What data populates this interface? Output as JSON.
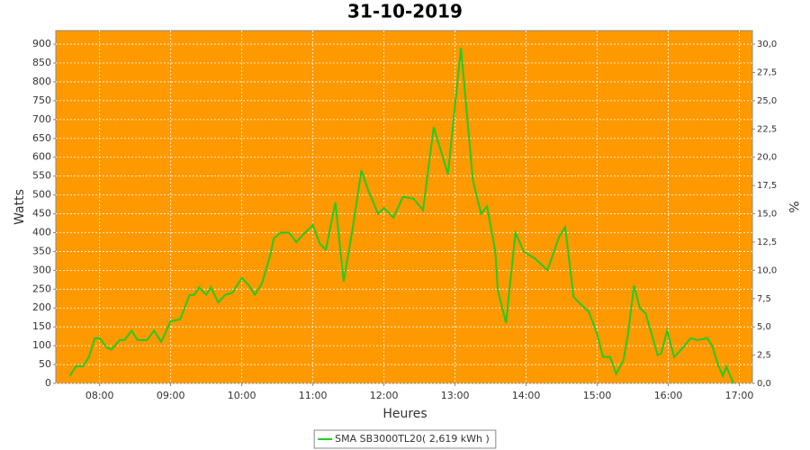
{
  "chart_data": {
    "type": "line",
    "title": "31-10-2019",
    "xlabel": "Heures",
    "ylabel": "Watts",
    "y2label": "%",
    "x": [
      "07:35",
      "07:40",
      "07:46",
      "07:51",
      "07:56",
      "08:00",
      "08:06",
      "08:10",
      "08:17",
      "08:21",
      "08:27",
      "08:32",
      "08:40",
      "08:46",
      "08:52",
      "09:00",
      "09:08",
      "09:16",
      "09:20",
      "09:24",
      "09:30",
      "09:34",
      "09:40",
      "09:46",
      "09:52",
      "10:00",
      "10:06",
      "10:11",
      "10:17",
      "10:24",
      "10:27",
      "10:33",
      "10:40",
      "10:46",
      "10:52",
      "11:00",
      "11:06",
      "11:11",
      "11:19",
      "11:26",
      "11:33",
      "11:41",
      "11:47",
      "11:55",
      "12:00",
      "12:08",
      "12:16",
      "12:25",
      "12:33",
      "12:42",
      "12:54",
      "13:05",
      "13:15",
      "13:22",
      "13:27",
      "13:34",
      "13:36",
      "13:43",
      "13:51",
      "13:58",
      "14:08",
      "14:18",
      "14:28",
      "14:33",
      "14:40",
      "14:46",
      "14:53",
      "15:00",
      "15:05",
      "15:11",
      "15:16",
      "15:22",
      "15:26",
      "15:31",
      "15:36",
      "15:41",
      "15:46",
      "15:51",
      "15:54",
      "15:59",
      "16:05",
      "16:11",
      "16:19",
      "16:25",
      "16:33",
      "16:37",
      "16:42",
      "16:46",
      "16:49",
      "16:55"
    ],
    "series": [
      {
        "name": "SMA SB3000TL20( 2,619 kWh )",
        "color": "#22cc22",
        "values": [
          20,
          45,
          45,
          70,
          120,
          120,
          95,
          90,
          115,
          115,
          140,
          115,
          115,
          140,
          110,
          165,
          170,
          235,
          235,
          255,
          235,
          255,
          215,
          235,
          240,
          280,
          260,
          235,
          265,
          340,
          385,
          400,
          400,
          375,
          395,
          420,
          370,
          355,
          480,
          270,
          400,
          565,
          510,
          450,
          465,
          440,
          495,
          490,
          460,
          680,
          555,
          890,
          540,
          450,
          470,
          350,
          250,
          160,
          400,
          350,
          330,
          300,
          390,
          415,
          230,
          210,
          190,
          130,
          70,
          70,
          25,
          60,
          130,
          260,
          200,
          185,
          130,
          75,
          80,
          140,
          70,
          90,
          120,
          115,
          120,
          100,
          50,
          20,
          45,
          0
        ]
      }
    ],
    "xlim": [
      "07:23",
      "17:11"
    ],
    "xticks": [
      "08:00",
      "09:00",
      "10:00",
      "11:00",
      "12:00",
      "13:00",
      "14:00",
      "15:00",
      "16:00",
      "17:00"
    ],
    "ylim": [
      0,
      936
    ],
    "yticks": [
      0,
      50,
      100,
      150,
      200,
      250,
      300,
      350,
      400,
      450,
      500,
      550,
      600,
      650,
      700,
      750,
      800,
      850,
      900
    ],
    "y2lim": [
      0,
      31.2
    ],
    "y2ticks": [
      {
        "value": 0,
        "label": "0,0"
      },
      {
        "value": 2.5,
        "label": "2,5"
      },
      {
        "value": 5,
        "label": "5,0"
      },
      {
        "value": 7.5,
        "label": "7,5"
      },
      {
        "value": 10,
        "label": "10,0"
      },
      {
        "value": 12.5,
        "label": "12,5"
      },
      {
        "value": 15,
        "label": "15,0"
      },
      {
        "value": 17.5,
        "label": "17,5"
      },
      {
        "value": 20,
        "label": "20,0"
      },
      {
        "value": 22.5,
        "label": "22,5"
      },
      {
        "value": 25,
        "label": "25,0"
      },
      {
        "value": 27.5,
        "label": "27,5"
      },
      {
        "value": 30,
        "label": "30,0"
      }
    ],
    "grid": true,
    "legend": "bottom",
    "background": "#ff9900"
  }
}
